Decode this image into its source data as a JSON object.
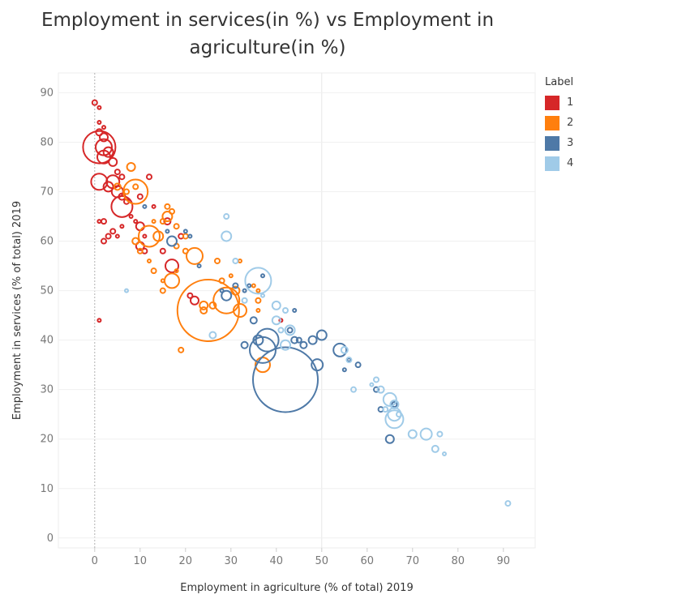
{
  "title_line1": "Employment in services(in %) vs Employment in",
  "title_line2": "agriculture(in %)",
  "legend": {
    "title": "Label",
    "items": [
      {
        "label": "1",
        "color": "#d62728"
      },
      {
        "label": "2",
        "color": "#ff7f0e"
      },
      {
        "label": "3",
        "color": "#4e79a7"
      },
      {
        "label": "4",
        "color": "#a0cbe8"
      }
    ]
  },
  "chart_data": {
    "type": "scatter",
    "title": "Employment in services(in %) vs Employment in agriculture(in %)",
    "xlabel": "Employment in agriculture (% of total) 2019",
    "ylabel": "Employment in services (% of total) 2019",
    "xlim": [
      -8,
      97
    ],
    "ylim": [
      -2,
      94
    ],
    "x_ticks": [
      0,
      10,
      20,
      30,
      40,
      50,
      60,
      70,
      80,
      90
    ],
    "y_ticks": [
      0,
      10,
      20,
      30,
      40,
      50,
      60,
      70,
      80,
      90
    ],
    "size_legend": false,
    "series": [
      {
        "name": "1",
        "color": "#d62728",
        "points": [
          [
            0,
            88,
            3
          ],
          [
            1,
            87,
            2
          ],
          [
            1,
            84,
            2
          ],
          [
            2,
            83,
            2
          ],
          [
            1,
            82,
            4
          ],
          [
            2,
            81,
            5
          ],
          [
            1,
            79,
            20
          ],
          [
            2,
            79,
            10
          ],
          [
            3,
            78,
            6
          ],
          [
            2,
            77,
            8
          ],
          [
            4,
            76,
            5
          ],
          [
            5,
            74,
            3
          ],
          [
            6,
            73,
            3
          ],
          [
            1,
            72,
            10
          ],
          [
            4,
            72,
            8
          ],
          [
            3,
            71,
            6
          ],
          [
            5,
            70,
            7
          ],
          [
            6,
            69,
            4
          ],
          [
            7,
            68,
            3
          ],
          [
            6,
            67,
            13
          ],
          [
            12,
            73,
            3
          ],
          [
            10,
            69,
            3
          ],
          [
            13,
            67,
            2
          ],
          [
            8,
            65,
            2
          ],
          [
            6,
            63,
            2
          ],
          [
            4,
            62,
            3
          ],
          [
            2,
            64,
            3
          ],
          [
            5,
            61,
            2
          ],
          [
            1,
            64,
            2
          ],
          [
            3,
            61,
            3
          ],
          [
            2,
            60,
            3
          ],
          [
            10,
            63,
            5
          ],
          [
            11,
            61,
            2
          ],
          [
            10,
            59,
            5
          ],
          [
            11,
            58,
            3
          ],
          [
            15,
            58,
            3
          ],
          [
            17,
            55,
            8
          ],
          [
            21,
            49,
            3
          ],
          [
            22,
            48,
            5
          ],
          [
            1,
            44,
            2
          ],
          [
            16,
            64,
            4
          ],
          [
            19,
            61,
            3
          ],
          [
            9,
            64,
            2
          ],
          [
            41,
            44,
            2
          ]
        ]
      },
      {
        "name": "2",
        "color": "#ff7f0e",
        "points": [
          [
            8,
            75,
            5
          ],
          [
            9,
            71,
            3
          ],
          [
            7,
            70,
            3
          ],
          [
            5,
            71,
            4
          ],
          [
            9,
            70,
            15
          ],
          [
            13,
            64,
            2
          ],
          [
            15,
            64,
            3
          ],
          [
            16,
            65,
            6
          ],
          [
            17,
            66,
            3
          ],
          [
            18,
            63,
            3
          ],
          [
            16,
            67,
            3
          ],
          [
            14,
            61,
            6
          ],
          [
            12,
            61,
            13
          ],
          [
            9,
            60,
            4
          ],
          [
            10,
            58,
            3
          ],
          [
            13,
            54,
            3
          ],
          [
            18,
            59,
            3
          ],
          [
            20,
            58,
            3
          ],
          [
            22,
            57,
            10
          ],
          [
            20,
            61,
            3
          ],
          [
            17,
            52,
            9
          ],
          [
            15,
            52,
            2
          ],
          [
            18,
            54,
            2
          ],
          [
            27,
            56,
            3
          ],
          [
            28,
            52,
            3
          ],
          [
            30,
            53,
            2
          ],
          [
            32,
            56,
            2
          ],
          [
            25,
            46,
            38
          ],
          [
            24,
            47,
            5
          ],
          [
            24,
            46,
            4
          ],
          [
            26,
            47,
            4
          ],
          [
            29,
            48,
            16
          ],
          [
            31,
            50,
            5
          ],
          [
            32,
            46,
            8
          ],
          [
            35,
            51,
            2
          ],
          [
            36,
            50,
            2
          ],
          [
            36,
            48,
            3
          ],
          [
            36,
            46,
            2
          ],
          [
            37,
            35,
            9
          ],
          [
            19,
            38,
            3
          ],
          [
            15,
            50,
            3
          ],
          [
            12,
            56,
            2
          ]
        ]
      },
      {
        "name": "3",
        "color": "#4e79a7",
        "points": [
          [
            17,
            60,
            6
          ],
          [
            20,
            62,
            2
          ],
          [
            21,
            61,
            2
          ],
          [
            23,
            55,
            2
          ],
          [
            28,
            50,
            2
          ],
          [
            29,
            49,
            6
          ],
          [
            31,
            51,
            3
          ],
          [
            33,
            50,
            2
          ],
          [
            34,
            51,
            2
          ],
          [
            35,
            44,
            4
          ],
          [
            33,
            39,
            4
          ],
          [
            36,
            40,
            6
          ],
          [
            38,
            40,
            14
          ],
          [
            37,
            38,
            16
          ],
          [
            42,
            32,
            40
          ],
          [
            43,
            42,
            3
          ],
          [
            44,
            46,
            2
          ],
          [
            44,
            40,
            4
          ],
          [
            45,
            40,
            3
          ],
          [
            46,
            39,
            4
          ],
          [
            48,
            40,
            5
          ],
          [
            50,
            41,
            6
          ],
          [
            49,
            35,
            7
          ],
          [
            54,
            38,
            8
          ],
          [
            56,
            36,
            2
          ],
          [
            55,
            34,
            2
          ],
          [
            58,
            35,
            3
          ],
          [
            62,
            30,
            3
          ],
          [
            63,
            26,
            3
          ],
          [
            66,
            27,
            3
          ],
          [
            65,
            20,
            5
          ],
          [
            11,
            67,
            2
          ],
          [
            16,
            62,
            2
          ],
          [
            37,
            53,
            2
          ]
        ]
      },
      {
        "name": "4",
        "color": "#a0cbe8",
        "points": [
          [
            29,
            65,
            3
          ],
          [
            29,
            61,
            6
          ],
          [
            31,
            56,
            3
          ],
          [
            36,
            52,
            16
          ],
          [
            37,
            49,
            2
          ],
          [
            33,
            48,
            3
          ],
          [
            40,
            47,
            5
          ],
          [
            42,
            46,
            3
          ],
          [
            40,
            44,
            5
          ],
          [
            41,
            42,
            3
          ],
          [
            43,
            42,
            6
          ],
          [
            42,
            39,
            6
          ],
          [
            26,
            41,
            4
          ],
          [
            7,
            50,
            2
          ],
          [
            55,
            38,
            4
          ],
          [
            56,
            36,
            3
          ],
          [
            57,
            30,
            3
          ],
          [
            62,
            32,
            3
          ],
          [
            63,
            30,
            4
          ],
          [
            65,
            28,
            8
          ],
          [
            66,
            27,
            5
          ],
          [
            64,
            26,
            3
          ],
          [
            66,
            25,
            8
          ],
          [
            66,
            24,
            11
          ],
          [
            67,
            25,
            3
          ],
          [
            70,
            21,
            5
          ],
          [
            73,
            21,
            7
          ],
          [
            75,
            18,
            4
          ],
          [
            77,
            17,
            2
          ],
          [
            76,
            21,
            3
          ],
          [
            91,
            7,
            3
          ],
          [
            61,
            31,
            2
          ]
        ]
      }
    ]
  }
}
